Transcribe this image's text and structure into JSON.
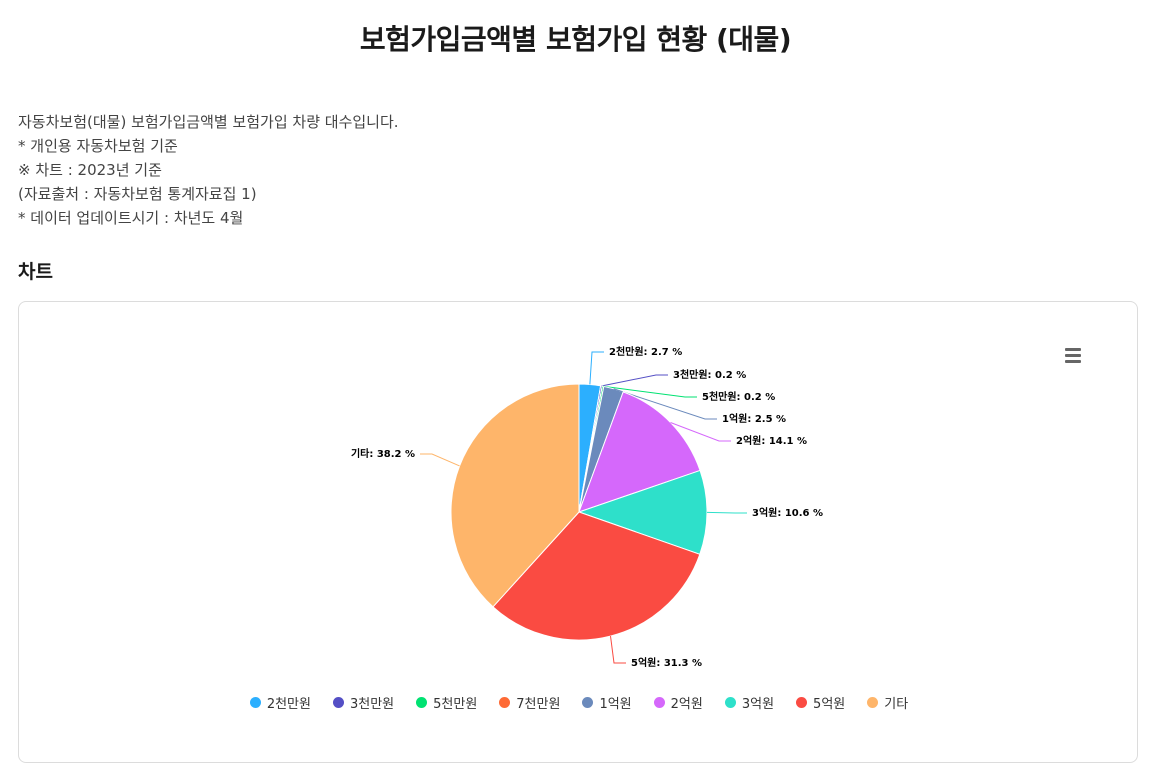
{
  "page": {
    "title": "보험가입금액별 보험가입 현황 (대물)",
    "description": [
      "자동차보험(대물) 보험가입금액별 보험가입 차량 대수입니다.",
      "* 개인용 자동차보험 기준",
      "※ 차트 : 2023년 기준",
      "(자료출처 : 자동차보험 통계자료집 1)",
      "* 데이터 업데이트시기 : 차년도 4월"
    ],
    "section_title": "차트"
  },
  "chart_data": {
    "type": "pie",
    "title": "",
    "legend_position": "bottom",
    "unit": "%",
    "slices": [
      {
        "name": "2천만원",
        "value": 2.7,
        "label": "2천만원: 2.7 %",
        "color": "#2caffe"
      },
      {
        "name": "3천만원",
        "value": 0.2,
        "label": "3천만원: 0.2 %",
        "color": "#544fc5"
      },
      {
        "name": "5천만원",
        "value": 0.2,
        "label": "5천만원: 0.2 %",
        "color": "#00e272"
      },
      {
        "name": "7천만원",
        "value": 0.0,
        "label": "",
        "color": "#fe6a35"
      },
      {
        "name": "1억원",
        "value": 2.5,
        "label": "1억원: 2.5 %",
        "color": "#6b8abc"
      },
      {
        "name": "2억원",
        "value": 14.1,
        "label": "2억원: 14.1 %",
        "color": "#d568fb"
      },
      {
        "name": "3억원",
        "value": 10.6,
        "label": "3억원: 10.6 %",
        "color": "#2ee0ca"
      },
      {
        "name": "5억원",
        "value": 31.3,
        "label": "5억원: 31.3 %",
        "color": "#fa4b42"
      },
      {
        "name": "기타",
        "value": 38.2,
        "label": "기타: 38.2 %",
        "color": "#feb56a"
      }
    ]
  }
}
